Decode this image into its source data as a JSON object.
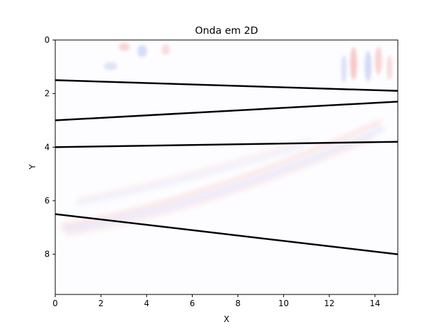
{
  "chart_data": {
    "type": "heatmap",
    "title": "Onda em 2D",
    "xlabel": "X",
    "ylabel": "Y",
    "xlim": [
      0,
      15
    ],
    "ylim": [
      9.5,
      0
    ],
    "y_inverted": true,
    "xticks": [
      0,
      2,
      4,
      6,
      8,
      10,
      12,
      14
    ],
    "yticks": [
      0,
      2,
      4,
      6,
      8
    ],
    "grid": false,
    "colormap": "bwr",
    "background_color": "#fdfdff",
    "layer_line_color": "#000000",
    "series": [
      {
        "x": [
          0,
          15
        ],
        "y": [
          1.5,
          1.9
        ]
      },
      {
        "x": [
          0,
          15
        ],
        "y": [
          3.0,
          2.3
        ]
      },
      {
        "x": [
          0,
          15
        ],
        "y": [
          4.0,
          3.8
        ]
      },
      {
        "x": [
          0,
          15
        ],
        "y": [
          6.5,
          8.0
        ]
      }
    ]
  }
}
